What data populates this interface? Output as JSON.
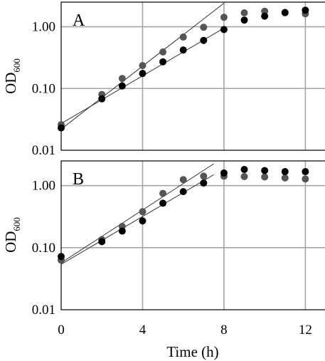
{
  "chart_data": [
    {
      "type": "scatter",
      "panel_label": "A",
      "yscale": "log",
      "ylim": [
        0.01,
        2.5
      ],
      "xlim": [
        0,
        13
      ],
      "yticks": [
        "0.01",
        "0.10",
        "1.00"
      ],
      "xticks": [
        "0",
        "4",
        "8",
        "12"
      ],
      "grid": true,
      "series": [
        {
          "color": "#555555",
          "points": [
            [
              0,
              0.026
            ],
            [
              2,
              0.08
            ],
            [
              3,
              0.145
            ],
            [
              4,
              0.235
            ],
            [
              5,
              0.39
            ],
            [
              6,
              0.68
            ],
            [
              7,
              0.98
            ],
            [
              8,
              1.42
            ],
            [
              9,
              1.68
            ],
            [
              10,
              1.78
            ],
            [
              11,
              1.68
            ],
            [
              12,
              1.62
            ]
          ],
          "fit": [
            [
              0,
              0.022
            ],
            [
              8,
              2.4
            ]
          ]
        },
        {
          "color": "#000000",
          "points": [
            [
              0,
              0.023
            ],
            [
              2,
              0.068
            ],
            [
              3,
              0.11
            ],
            [
              4,
              0.175
            ],
            [
              5,
              0.27
            ],
            [
              6,
              0.42
            ],
            [
              7,
              0.6
            ],
            [
              8,
              0.9
            ],
            [
              9,
              1.28
            ],
            [
              10,
              1.48
            ],
            [
              11,
              1.7
            ],
            [
              12,
              1.85
            ]
          ],
          "fit": [
            [
              0,
              0.027
            ],
            [
              8,
              0.95
            ]
          ]
        }
      ]
    },
    {
      "type": "scatter",
      "panel_label": "B",
      "yscale": "log",
      "ylim": [
        0.01,
        2.5
      ],
      "xlim": [
        0,
        13
      ],
      "yticks": [
        "0.01",
        "0.10",
        "1.00"
      ],
      "xticks": [
        "0",
        "4",
        "8",
        "12"
      ],
      "grid": true,
      "xlabel": "Time (h)",
      "series": [
        {
          "color": "#555555",
          "points": [
            [
              0,
              0.063
            ],
            [
              2,
              0.135
            ],
            [
              3,
              0.22
            ],
            [
              4,
              0.38
            ],
            [
              5,
              0.75
            ],
            [
              6,
              1.25
            ],
            [
              7,
              1.42
            ],
            [
              8,
              1.42
            ],
            [
              9,
              1.4
            ],
            [
              10,
              1.38
            ],
            [
              11,
              1.33
            ],
            [
              12,
              1.28
            ]
          ],
          "fit": [
            [
              0,
              0.057
            ],
            [
              7.5,
              2.25
            ]
          ]
        },
        {
          "color": "#000000",
          "points": [
            [
              0,
              0.072
            ],
            [
              2,
              0.125
            ],
            [
              3,
              0.185
            ],
            [
              4,
              0.27
            ],
            [
              5,
              0.52
            ],
            [
              6,
              0.8
            ],
            [
              7,
              1.1
            ],
            [
              8,
              1.6
            ],
            [
              9,
              1.82
            ],
            [
              10,
              1.75
            ],
            [
              11,
              1.68
            ],
            [
              12,
              1.68
            ]
          ],
          "fit": [
            [
              0,
              0.054
            ],
            [
              7.5,
              1.5
            ]
          ]
        }
      ]
    }
  ],
  "axes": {
    "ylabel_main": "OD",
    "ylabel_sub": "600"
  }
}
